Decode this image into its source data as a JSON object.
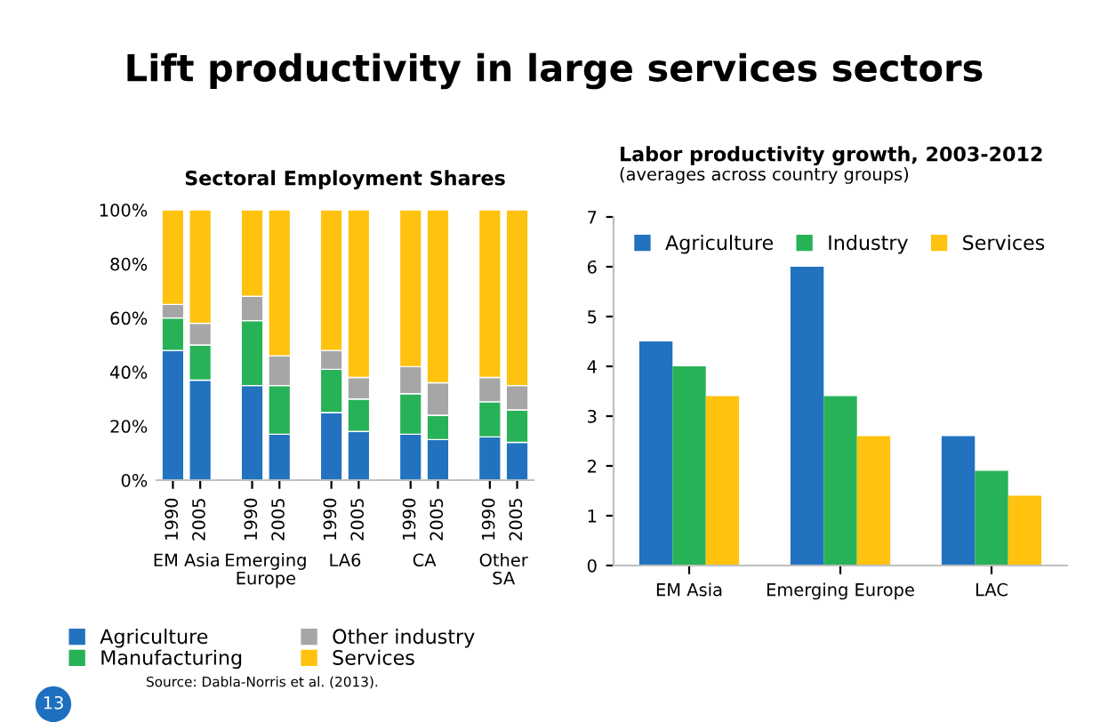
{
  "chart_data": [
    {
      "type": "bar",
      "stacked": true,
      "title": "Sectoral Employment Shares",
      "categories": [
        "1990",
        "2005",
        "1990",
        "2005",
        "1990",
        "2005",
        "1990",
        "2005",
        "1990",
        "2005"
      ],
      "series": [
        {
          "name": "Agriculture",
          "color": "#2272c0",
          "values": [
            48,
            37,
            35,
            17,
            25,
            18,
            17,
            15,
            16,
            14
          ]
        },
        {
          "name": "Manufacturing",
          "color": "#28b257",
          "values": [
            12,
            13,
            24,
            18,
            16,
            12,
            15,
            9,
            13,
            12
          ]
        },
        {
          "name": "Other industry",
          "color": "#a6a6a6",
          "values": [
            5,
            8,
            9,
            11,
            7,
            8,
            10,
            12,
            9,
            9
          ]
        },
        {
          "name": "Services",
          "color": "#ffc20e",
          "values": [
            35,
            42,
            32,
            54,
            52,
            62,
            58,
            64,
            62,
            65
          ]
        }
      ],
      "ylim": [
        0,
        100
      ],
      "yticks": [
        {
          "value": 0,
          "label": "0%"
        },
        {
          "value": 20,
          "label": "20%"
        },
        {
          "value": 40,
          "label": "40%"
        },
        {
          "value": 60,
          "label": "60%"
        },
        {
          "value": 80,
          "label": "80%"
        },
        {
          "value": 100,
          "label": "100%"
        }
      ],
      "legend": "bottom",
      "grid": false,
      "annotations": [
        "Lift productivity in large services sectors",
        "Source: Dabla-Norris et al. (2013).",
        "13",
        "EM Asia",
        "Emerging\nEurope",
        "LA6",
        "CA",
        "Other\nSA"
      ]
    },
    {
      "type": "bar",
      "title": "Labor productivity growth, 2003-2012",
      "subtitle": "(averages across country groups)",
      "categories": [
        "EM Asia",
        "Emerging Europe",
        "LAC"
      ],
      "series": [
        {
          "name": "Agriculture",
          "color": "#2272c0",
          "values": [
            4.5,
            6.0,
            2.6
          ]
        },
        {
          "name": "Industry",
          "color": "#28b257",
          "values": [
            4.0,
            3.4,
            1.9
          ]
        },
        {
          "name": "Services",
          "color": "#ffc20e",
          "values": [
            3.4,
            2.6,
            1.4
          ]
        }
      ],
      "ylim": [
        0,
        7
      ],
      "yticks": [
        0,
        1,
        2,
        3,
        4,
        5,
        6,
        7
      ],
      "legend": "top",
      "grid": false
    }
  ]
}
